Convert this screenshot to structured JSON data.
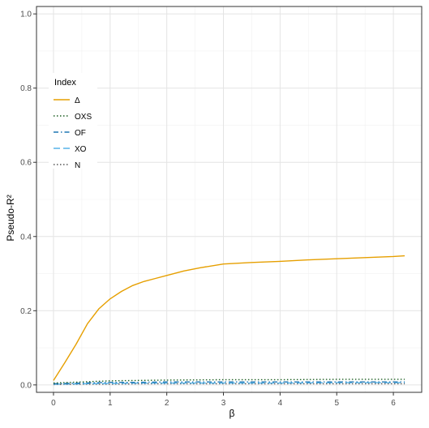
{
  "chart_data": {
    "type": "line",
    "xlabel": "β",
    "ylabel": "Pseudo-R²",
    "xlim": [
      -0.3,
      6.5
    ],
    "ylim": [
      -0.02,
      1.02
    ],
    "x_ticks": [
      0,
      1,
      2,
      3,
      4,
      5,
      6
    ],
    "y_ticks": [
      0.0,
      0.2,
      0.4,
      0.6,
      0.8,
      1.0
    ],
    "x_tick_labels": [
      "0",
      "1",
      "2",
      "3",
      "4",
      "5",
      "6"
    ],
    "y_tick_labels": [
      "0.0",
      "0.2",
      "0.4",
      "0.6",
      "0.8",
      "1.0"
    ],
    "grid": true,
    "legend": {
      "title": "Index",
      "placement": "left-inside"
    },
    "series": [
      {
        "name": "Δ",
        "color": "#E69F00",
        "dash": "solid",
        "x": [
          0,
          0.2,
          0.4,
          0.6,
          0.8,
          1.0,
          1.2,
          1.4,
          1.6,
          1.8,
          2.0,
          2.3,
          2.6,
          3.0,
          3.5,
          4.0,
          4.5,
          5.0,
          5.5,
          6.0,
          6.2
        ],
        "y": [
          0.012,
          0.06,
          0.11,
          0.165,
          0.205,
          0.232,
          0.252,
          0.268,
          0.279,
          0.287,
          0.295,
          0.307,
          0.316,
          0.326,
          0.33,
          0.333,
          0.337,
          0.34,
          0.343,
          0.346,
          0.348
        ]
      },
      {
        "name": "OXS",
        "color": "#1b5e20",
        "dash": "dotted",
        "x": [
          0,
          0.5,
          1.0,
          1.5,
          2.0,
          3.0,
          4.0,
          5.0,
          6.0,
          6.2
        ],
        "y": [
          0.005,
          0.008,
          0.011,
          0.012,
          0.013,
          0.014,
          0.014,
          0.015,
          0.015,
          0.015
        ]
      },
      {
        "name": "OF",
        "color": "#1f77b4",
        "dash": "dashdot",
        "x": [
          0,
          0.5,
          1.0,
          1.5,
          2.0,
          3.0,
          4.0,
          5.0,
          6.0,
          6.2
        ],
        "y": [
          0.003,
          0.005,
          0.007,
          0.007,
          0.008,
          0.008,
          0.008,
          0.008,
          0.008,
          0.008
        ]
      },
      {
        "name": "XO",
        "color": "#56B4E9",
        "dash": "longdash",
        "x": [
          0,
          0.5,
          1.0,
          1.5,
          2.0,
          3.0,
          4.0,
          5.0,
          6.0,
          6.2
        ],
        "y": [
          0.002,
          0.003,
          0.004,
          0.005,
          0.005,
          0.005,
          0.005,
          0.006,
          0.006,
          0.006
        ]
      },
      {
        "name": "N",
        "color": "#555555",
        "dash": "dotted",
        "x": [
          0,
          0.5,
          1.0,
          1.5,
          2.0,
          3.0,
          4.0,
          5.0,
          6.0,
          6.2
        ],
        "y": [
          0.001,
          0.002,
          0.002,
          0.003,
          0.003,
          0.003,
          0.003,
          0.003,
          0.003,
          0.003
        ]
      }
    ]
  }
}
